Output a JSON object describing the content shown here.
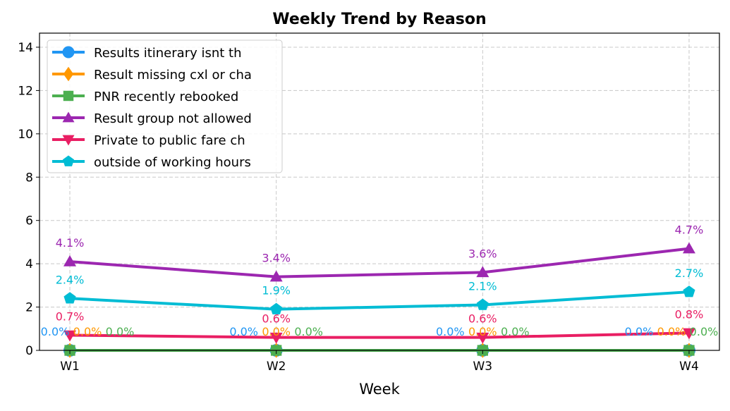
{
  "chart_data": {
    "type": "line",
    "title": "Weekly Trend by Reason",
    "xlabel": "Week",
    "ylabel": "",
    "categories": [
      "W1",
      "W2",
      "W3",
      "W4"
    ],
    "ylim": [
      0,
      14.65
    ],
    "yticks": [
      0,
      2,
      4,
      6,
      8,
      10,
      12,
      14
    ],
    "grid": true,
    "legend_position": "top-left",
    "series": [
      {
        "name": "Results itinerary isnt th",
        "values": [
          0.0,
          0.0,
          0.0,
          0.0
        ],
        "labels": [
          "0.0%",
          "0.0%",
          "0.0%",
          "0.0%"
        ],
        "color": "#2196F3",
        "marker": "circle"
      },
      {
        "name": "Result missing cxl or cha",
        "values": [
          0.0,
          0.0,
          0.0,
          0.0
        ],
        "labels": [
          "0.0%",
          "0.0%",
          "0.0%",
          "0.0%"
        ],
        "color": "#FF9800",
        "marker": "diamond"
      },
      {
        "name": "PNR recently rebooked",
        "values": [
          0.0,
          0.0,
          0.0,
          0.0
        ],
        "labels": [
          "0.0%",
          "0.0%",
          "0.0%",
          "0.0%"
        ],
        "color": "#4CAF50",
        "marker": "square"
      },
      {
        "name": "Result group not allowed",
        "values": [
          4.1,
          3.4,
          3.6,
          4.7
        ],
        "labels": [
          "4.1%",
          "3.4%",
          "3.6%",
          "4.7%"
        ],
        "color": "#9C27B0",
        "marker": "triangle-up"
      },
      {
        "name": "Private to public fare ch",
        "values": [
          0.7,
          0.6,
          0.6,
          0.8
        ],
        "labels": [
          "0.7%",
          "0.6%",
          "0.6%",
          "0.8%"
        ],
        "color": "#E91E63",
        "marker": "triangle-down"
      },
      {
        "name": "outside of working hours",
        "values": [
          2.4,
          1.9,
          2.1,
          2.7
        ],
        "labels": [
          "2.4%",
          "1.9%",
          "2.1%",
          "2.7%"
        ],
        "color": "#00BCD4",
        "marker": "pentagon"
      }
    ]
  }
}
